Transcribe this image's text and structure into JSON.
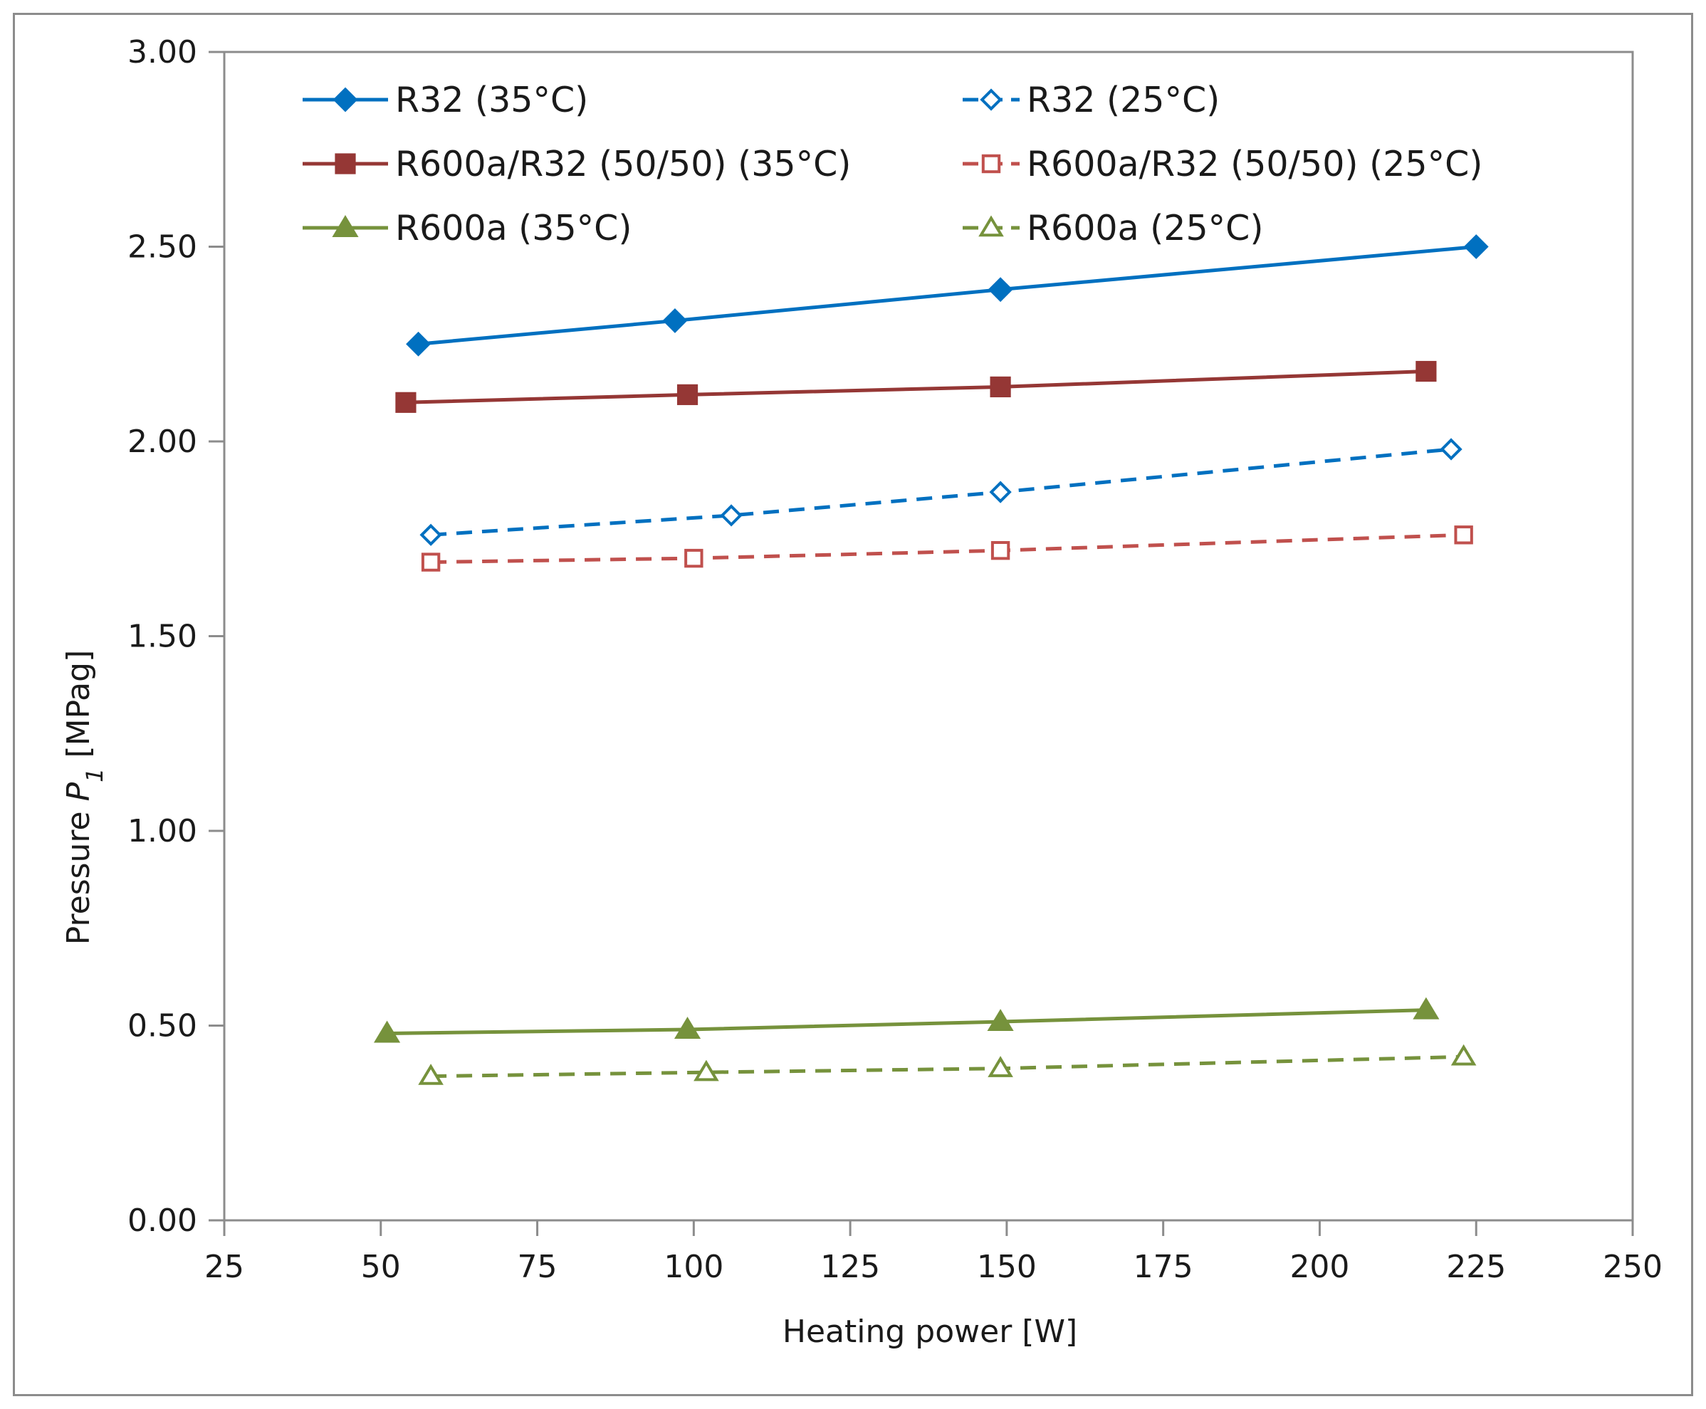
{
  "chart_data": {
    "type": "line",
    "title": "",
    "xlabel": "Heating power [W]",
    "ylabel_parts": [
      "Pressure ",
      "P",
      "1",
      " [MPag]"
    ],
    "xlim": [
      25,
      250
    ],
    "ylim": [
      0,
      3
    ],
    "x_ticks": [
      "25",
      "50",
      "75",
      "100",
      "125",
      "150",
      "175",
      "200",
      "225",
      "250"
    ],
    "y_ticks": [
      "0.00",
      "0.50",
      "1.00",
      "1.50",
      "2.00",
      "2.50",
      "3.00"
    ],
    "grid": false,
    "legend_position": "top",
    "series": [
      {
        "name": "R32  (35°C)",
        "color": "#0070C0",
        "line": "solid",
        "marker": "diamond",
        "filled": true,
        "x": [
          56,
          97,
          149,
          225
        ],
        "y": [
          2.25,
          2.31,
          2.39,
          2.5
        ]
      },
      {
        "name": "R32 (25°C)",
        "color": "#0070C0",
        "line": "dashed",
        "marker": "diamond",
        "filled": false,
        "x": [
          58,
          106,
          149,
          221
        ],
        "y": [
          1.76,
          1.81,
          1.87,
          1.98
        ]
      },
      {
        "name": "R600a/R32 (50/50) (35°C)",
        "color": "#953735",
        "line": "solid",
        "marker": "square",
        "filled": true,
        "x": [
          54,
          99,
          149,
          217
        ],
        "y": [
          2.1,
          2.12,
          2.14,
          2.18
        ]
      },
      {
        "name": "R600a/R32 (50/50) (25°C)",
        "color": "#C0504D",
        "line": "dashed",
        "marker": "square",
        "filled": false,
        "x": [
          58,
          100,
          149,
          223
        ],
        "y": [
          1.69,
          1.7,
          1.72,
          1.76
        ]
      },
      {
        "name": "R600a  (35°C)",
        "color": "#76923C",
        "line": "solid",
        "marker": "triangle",
        "filled": true,
        "x": [
          51,
          99,
          149,
          217
        ],
        "y": [
          0.48,
          0.49,
          0.51,
          0.54
        ]
      },
      {
        "name": "R600a (25°C)",
        "color": "#76923C",
        "line": "dashed",
        "marker": "triangle",
        "filled": false,
        "x": [
          58,
          102,
          149,
          223
        ],
        "y": [
          0.37,
          0.38,
          0.39,
          0.42
        ]
      }
    ]
  }
}
